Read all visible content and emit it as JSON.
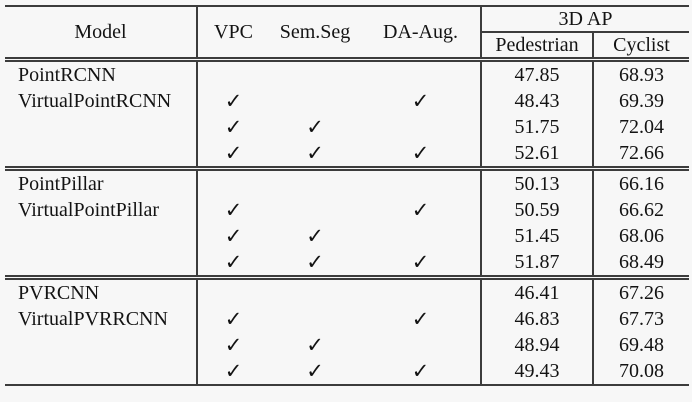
{
  "table": {
    "title": "ablation-results-table",
    "checkmark_symbol": "✓",
    "header": {
      "model": "Model",
      "vpc": "VPC",
      "semseg": "Sem.Seg",
      "daaug": "DA-Aug.",
      "ap3d": "3D AP",
      "pedestrian": "Pedestrian",
      "cyclist": "Cyclist"
    },
    "groups": [
      {
        "rows": [
          {
            "model": "PointRCNN",
            "vpc": false,
            "semseg": false,
            "daaug": false,
            "pedestrian": "47.85",
            "cyclist": "68.93"
          },
          {
            "model": "VirtualPointRCNN",
            "vpc": true,
            "semseg": false,
            "daaug": true,
            "pedestrian": "48.43",
            "cyclist": "69.39"
          },
          {
            "model": "",
            "vpc": true,
            "semseg": true,
            "daaug": false,
            "pedestrian": "51.75",
            "cyclist": "72.04"
          },
          {
            "model": "",
            "vpc": true,
            "semseg": true,
            "daaug": true,
            "pedestrian": "52.61",
            "cyclist": "72.66"
          }
        ]
      },
      {
        "rows": [
          {
            "model": "PointPillar",
            "vpc": false,
            "semseg": false,
            "daaug": false,
            "pedestrian": "50.13",
            "cyclist": "66.16"
          },
          {
            "model": "VirtualPointPillar",
            "vpc": true,
            "semseg": false,
            "daaug": true,
            "pedestrian": "50.59",
            "cyclist": "66.62"
          },
          {
            "model": "",
            "vpc": true,
            "semseg": true,
            "daaug": false,
            "pedestrian": "51.45",
            "cyclist": "68.06"
          },
          {
            "model": "",
            "vpc": true,
            "semseg": true,
            "daaug": true,
            "pedestrian": "51.87",
            "cyclist": "68.49"
          }
        ]
      },
      {
        "rows": [
          {
            "model": "PVRCNN",
            "vpc": false,
            "semseg": false,
            "daaug": false,
            "pedestrian": "46.41",
            "cyclist": "67.26"
          },
          {
            "model": "VirtualPVRRCNN",
            "vpc": true,
            "semseg": false,
            "daaug": true,
            "pedestrian": "46.83",
            "cyclist": "67.73"
          },
          {
            "model": "",
            "vpc": true,
            "semseg": true,
            "daaug": false,
            "pedestrian": "48.94",
            "cyclist": "69.48"
          },
          {
            "model": "",
            "vpc": true,
            "semseg": true,
            "daaug": true,
            "pedestrian": "49.43",
            "cyclist": "70.08"
          }
        ]
      }
    ]
  }
}
